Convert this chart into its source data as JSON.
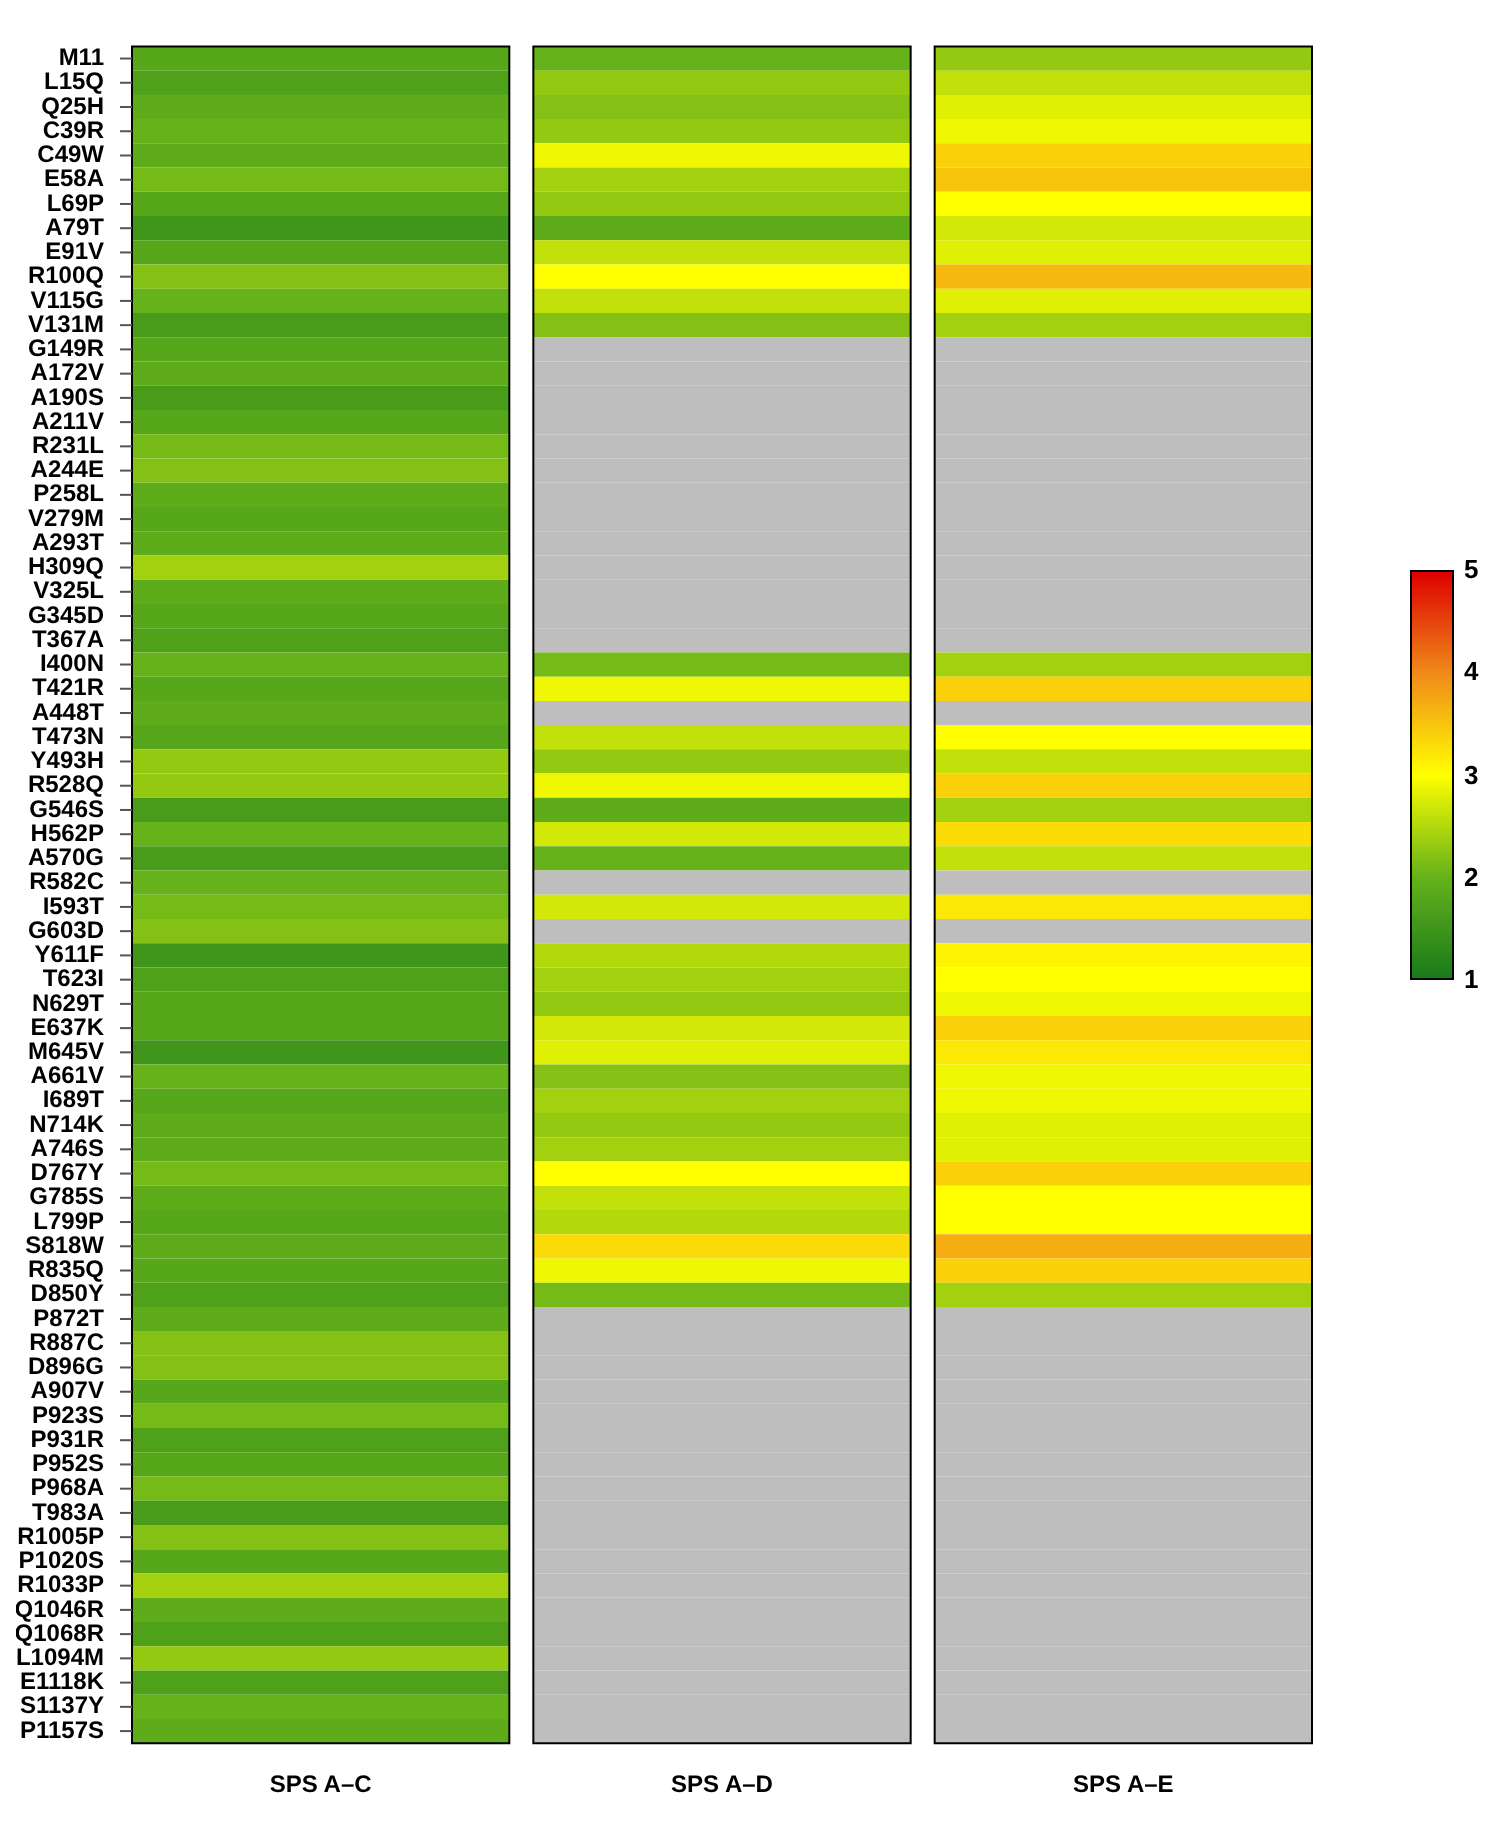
{
  "chart_data": {
    "type": "heatmap",
    "categories": [
      "SPS A–C",
      "SPS A–D",
      "SPS A–E"
    ],
    "clim": [
      1,
      5
    ],
    "cticks": [
      1,
      2,
      3,
      4,
      5
    ],
    "y_categories": [
      "M11",
      "L15Q",
      "Q25H",
      "C39R",
      "C49W",
      "E58A",
      "L69P",
      "A79T",
      "E91V",
      "R100Q",
      "V115G",
      "V131M",
      "G149R",
      "A172V",
      "A190S",
      "A211V",
      "R231L",
      "A244E",
      "P258L",
      "V279M",
      "A293T",
      "H309Q",
      "V325L",
      "G345D",
      "T367A",
      "I400N",
      "T421R",
      "A448T",
      "T473N",
      "Y493H",
      "R528Q",
      "G546S",
      "H562P",
      "A570G",
      "R582C",
      "I593T",
      "G603D",
      "Y611F",
      "T623I",
      "N629T",
      "E637K",
      "M645V",
      "A661V",
      "I689T",
      "N714K",
      "A746S",
      "D767Y",
      "G785S",
      "L799P",
      "S818W",
      "R835Q",
      "D850Y",
      "P872T",
      "R887C",
      "D896G",
      "A907V",
      "P923S",
      "P931R",
      "P952S",
      "P968A",
      "T983A",
      "R1005P",
      "P1020S",
      "R1033P",
      "Q1046R",
      "Q1068R",
      "L1094M",
      "E1118K",
      "S1137Y",
      "P1157S"
    ],
    "cells": [
      [
        1.8,
        2.0,
        2.3
      ],
      [
        1.7,
        2.3,
        2.6
      ],
      [
        1.9,
        2.2,
        2.8
      ],
      [
        2.0,
        2.3,
        2.9
      ],
      [
        1.9,
        2.9,
        3.4
      ],
      [
        2.1,
        2.4,
        3.5
      ],
      [
        1.8,
        2.3,
        3.0
      ],
      [
        1.5,
        1.9,
        2.7
      ],
      [
        1.8,
        2.6,
        2.8
      ],
      [
        2.2,
        3.0,
        3.6
      ],
      [
        2.0,
        2.6,
        2.8
      ],
      [
        1.6,
        2.2,
        2.4
      ],
      [
        1.8,
        null,
        null
      ],
      [
        1.9,
        null,
        null
      ],
      [
        1.6,
        null,
        null
      ],
      [
        1.8,
        null,
        null
      ],
      [
        2.1,
        null,
        null
      ],
      [
        2.2,
        null,
        null
      ],
      [
        1.9,
        null,
        null
      ],
      [
        1.8,
        null,
        null
      ],
      [
        1.9,
        null,
        null
      ],
      [
        2.4,
        null,
        null
      ],
      [
        1.9,
        null,
        null
      ],
      [
        1.8,
        null,
        null
      ],
      [
        1.7,
        null,
        null
      ],
      [
        2.0,
        2.1,
        2.4
      ],
      [
        1.8,
        2.9,
        3.4
      ],
      [
        1.9,
        null,
        null
      ],
      [
        1.8,
        2.6,
        3.0
      ],
      [
        2.3,
        2.3,
        2.6
      ],
      [
        2.3,
        2.9,
        3.4
      ],
      [
        1.6,
        1.9,
        2.4
      ],
      [
        2.0,
        2.7,
        3.3
      ],
      [
        1.6,
        2.0,
        2.6
      ],
      [
        2.0,
        null,
        null
      ],
      [
        2.1,
        2.7,
        3.2
      ],
      [
        2.2,
        null,
        null
      ],
      [
        1.5,
        2.5,
        3.1
      ],
      [
        1.7,
        2.4,
        3.0
      ],
      [
        1.8,
        2.3,
        2.9
      ],
      [
        1.8,
        2.7,
        3.4
      ],
      [
        1.5,
        2.8,
        3.2
      ],
      [
        2.0,
        2.2,
        2.9
      ],
      [
        1.8,
        2.4,
        2.9
      ],
      [
        1.9,
        2.3,
        2.8
      ],
      [
        1.9,
        2.4,
        2.8
      ],
      [
        2.1,
        3.0,
        3.4
      ],
      [
        1.9,
        2.6,
        3.0
      ],
      [
        1.8,
        2.5,
        3.0
      ],
      [
        1.9,
        3.3,
        3.7
      ],
      [
        1.8,
        2.9,
        3.4
      ],
      [
        1.7,
        2.1,
        2.4
      ],
      [
        1.9,
        null,
        null
      ],
      [
        2.2,
        null,
        null
      ],
      [
        2.2,
        null,
        null
      ],
      [
        1.8,
        null,
        null
      ],
      [
        2.1,
        null,
        null
      ],
      [
        1.7,
        null,
        null
      ],
      [
        1.8,
        null,
        null
      ],
      [
        2.1,
        null,
        null
      ],
      [
        1.6,
        null,
        null
      ],
      [
        2.2,
        null,
        null
      ],
      [
        1.8,
        null,
        null
      ],
      [
        2.4,
        null,
        null
      ],
      [
        1.9,
        null,
        null
      ],
      [
        1.7,
        null,
        null
      ],
      [
        2.3,
        null,
        null
      ],
      [
        1.7,
        null,
        null
      ],
      [
        2.0,
        null,
        null
      ],
      [
        1.9,
        null,
        null
      ]
    ]
  }
}
